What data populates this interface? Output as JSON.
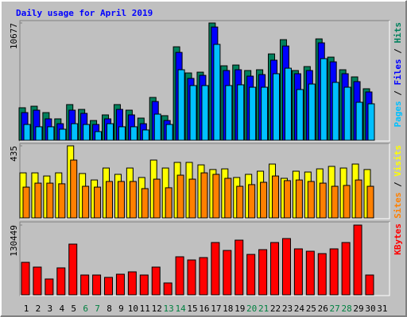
{
  "chart_data": {
    "type": "bar",
    "title": "Daily usage for April 2019",
    "categories": [
      "1",
      "2",
      "3",
      "4",
      "5",
      "6",
      "7",
      "8",
      "9",
      "10",
      "11",
      "12",
      "13",
      "14",
      "15",
      "16",
      "17",
      "18",
      "19",
      "20",
      "21",
      "22",
      "23",
      "24",
      "25",
      "26",
      "27",
      "28",
      "29",
      "30",
      "31"
    ],
    "label_colors": [
      "#000000",
      "#000000",
      "#000000",
      "#000000",
      "#000000",
      "#008040",
      "#008040",
      "#000000",
      "#000000",
      "#000000",
      "#000000",
      "#000000",
      "#008040",
      "#008040",
      "#000000",
      "#000000",
      "#000000",
      "#000000",
      "#000000",
      "#008040",
      "#008040",
      "#000000",
      "#000000",
      "#000000",
      "#000000",
      "#000000",
      "#008040",
      "#008040",
      "#000000",
      "#000000",
      "#000000"
    ],
    "legend_separator": " / ",
    "panels": [
      {
        "ylim": [
          0,
          10677
        ],
        "yticks": [
          10677
        ],
        "series": [
          {
            "name": "Hits",
            "color": "#00805c",
            "values": [
              2960,
              3100,
              2520,
              1950,
              3250,
              2810,
              1800,
              2310,
              3250,
              2740,
              2020,
              3900,
              2240,
              8510,
              6130,
              6200,
              10677,
              6780,
              6850,
              6350,
              6420,
              7860,
              9160,
              6350,
              6710,
              9230,
              7570,
              6420,
              5770,
              4690,
              null
            ]
          },
          {
            "name": "Files",
            "color": "#0000ff",
            "values": [
              2520,
              2740,
              1950,
              1510,
              2740,
              2450,
              1440,
              1950,
              2810,
              2310,
              1510,
              3530,
              1800,
              8000,
              5630,
              5910,
              10310,
              6350,
              6420,
              5840,
              5980,
              7290,
              8580,
              6060,
              6350,
              8870,
              7140,
              6060,
              5340,
              4400,
              null
            ]
          },
          {
            "name": "Pages",
            "color": "#00c0ff",
            "values": [
              1440,
              1230,
              1230,
              1010,
              1510,
              1440,
              790,
              1510,
              1230,
              1230,
              940,
              2380,
              1440,
              6420,
              4980,
              4980,
              8730,
              4980,
              5050,
              4830,
              4830,
              6060,
              6560,
              4620,
              5120,
              7430,
              5270,
              4830,
              3460,
              3320,
              null
            ]
          }
        ]
      },
      {
        "ylim": [
          0,
          435
        ],
        "yticks": [
          435
        ],
        "series": [
          {
            "name": "Visits",
            "color": "#ffff00",
            "values": [
              272,
              272,
              253,
              272,
              435,
              268,
              229,
              301,
              263,
              301,
              244,
              349,
              301,
              335,
              335,
              320,
              292,
              296,
              244,
              263,
              282,
              325,
              239,
              282,
              277,
              296,
              311,
              301,
              325,
              292,
              null
            ]
          },
          {
            "name": "Sites",
            "color": "#ff8000",
            "values": [
              186,
              210,
              210,
              206,
              349,
              191,
              186,
              220,
              220,
              220,
              177,
              234,
              182,
              258,
              234,
              272,
              263,
              239,
              191,
              201,
              215,
              253,
              225,
              229,
              220,
              210,
              191,
              196,
              229,
              191,
              null
            ]
          }
        ]
      },
      {
        "ylim": [
          0,
          130449
        ],
        "yticks": [
          130449
        ],
        "series": [
          {
            "name": "KBytes",
            "color": "#ff0000",
            "values": [
              60770,
              51880,
              29640,
              50400,
              94860,
              37060,
              37060,
              32610,
              38540,
              42980,
              37060,
              51880,
              22230,
              71150,
              65220,
              69660,
              97830,
              83000,
              102270,
              75590,
              84490,
              97830,
              105240,
              85970,
              81520,
              77080,
              85970,
              97830,
              130449,
              37060,
              null
            ]
          }
        ]
      }
    ]
  }
}
